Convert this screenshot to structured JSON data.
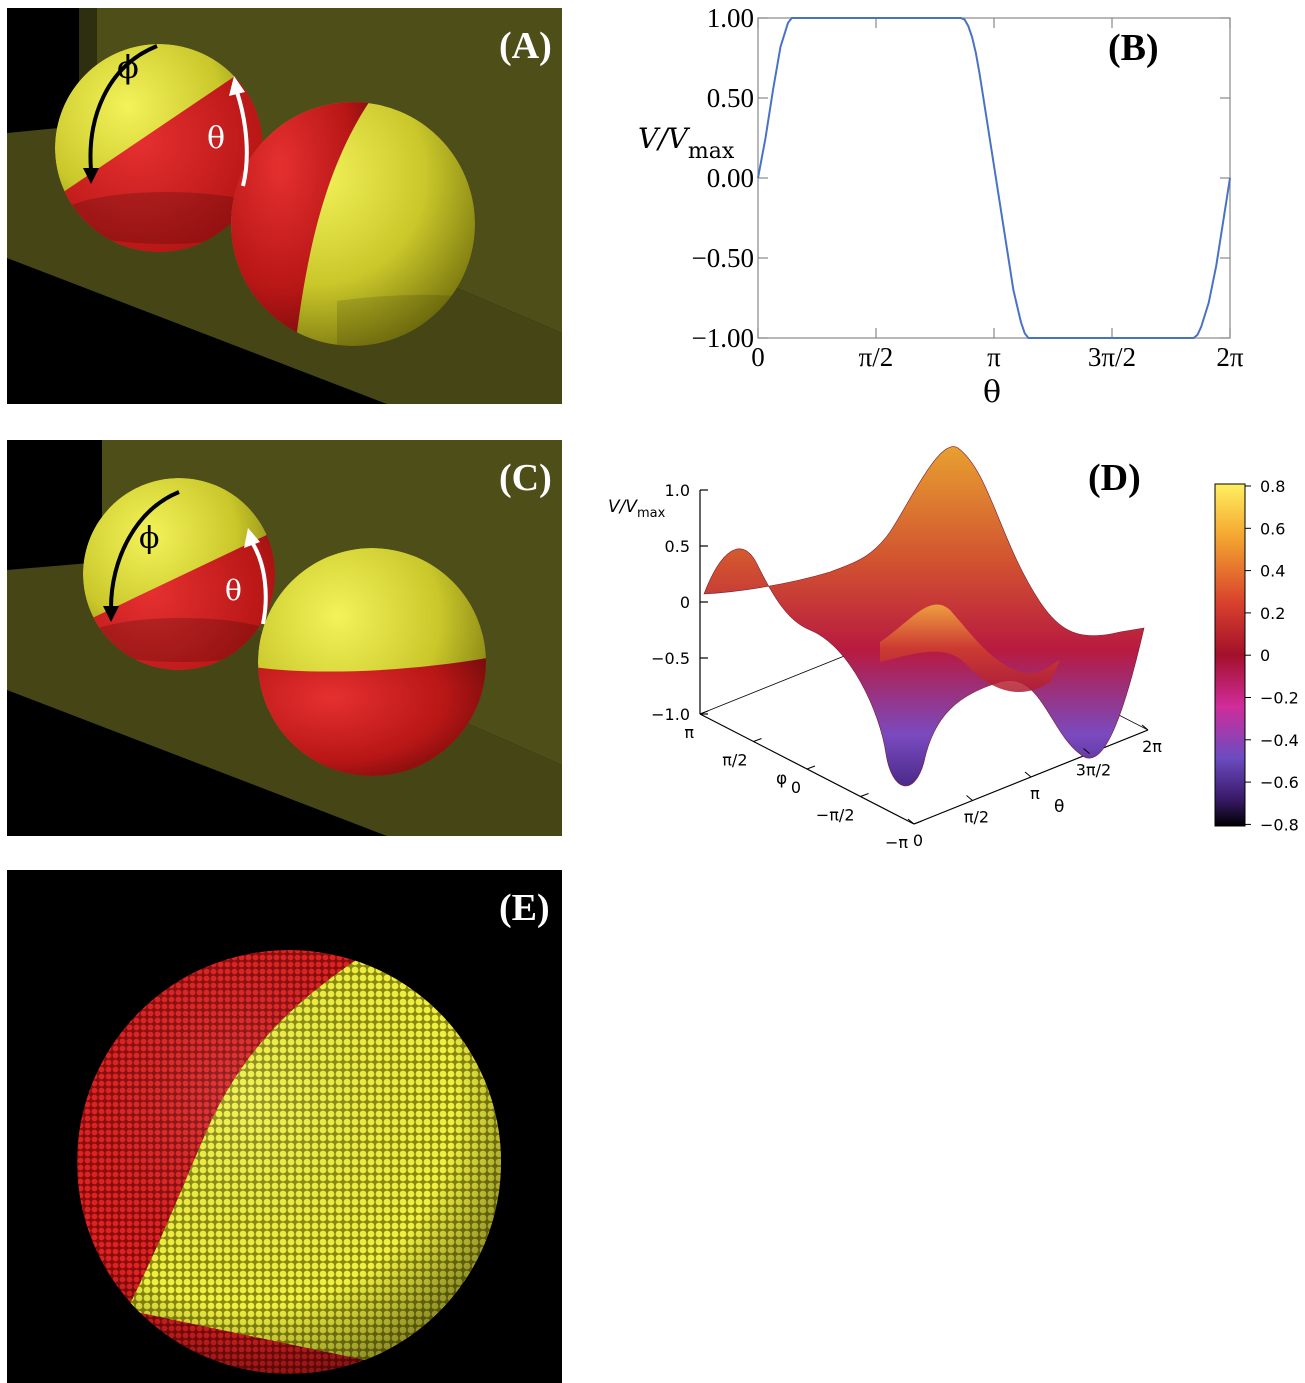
{
  "panels": {
    "A": {
      "label": "(A)",
      "phi": "ϕ",
      "theta": "θ"
    },
    "B": {
      "label": "(B)",
      "ylabel_main": "V/V",
      "ylabel_sub": "max",
      "xlabel": "θ",
      "xticks": [
        "0",
        "π/2",
        "π",
        "3π/2",
        "2π"
      ],
      "yticks": [
        "1.00",
        "0.50",
        "0.00",
        "−0.50",
        "−1.00"
      ]
    },
    "C": {
      "label": "(C)",
      "phi": "ϕ",
      "theta": "θ"
    },
    "D": {
      "label": "(D)",
      "zlabel_main": "V/V",
      "zlabel_sub": "max",
      "zticks": [
        "1.0",
        "0.5",
        "0",
        "−0.5",
        "−1.0"
      ],
      "phi_label": "φ",
      "phi_ticks": [
        "π",
        "π/2",
        "0",
        "−π/2",
        "−π"
      ],
      "theta_label": "θ",
      "theta_ticks": [
        "0",
        "π/2",
        "π",
        "3π/2",
        "2π"
      ],
      "colorbar_ticks": [
        "0.8",
        "0.6",
        "0.4",
        "0.2",
        "0",
        "−0.2",
        "−0.4",
        "−0.6",
        "−0.8"
      ]
    },
    "E": {
      "label": "(E)"
    }
  },
  "chart_data": {
    "type": "line",
    "title": "",
    "xlabel": "θ",
    "ylabel": "V/Vmax",
    "xlim": [
      0,
      6.2832
    ],
    "ylim": [
      -1,
      1
    ],
    "x_tick_labels": [
      "0",
      "π/2",
      "π",
      "3π/2",
      "2π"
    ],
    "y_tick_labels": [
      "1.00",
      "0.50",
      "0.00",
      "−0.50",
      "−1.00"
    ],
    "grid": false,
    "series": [
      {
        "color": "#4a72c4",
        "x": [
          0,
          0.1,
          0.2,
          0.3,
          0.4,
          0.45,
          0.5,
          0.6,
          1.0,
          1.5,
          2.0,
          2.5,
          2.7,
          2.75,
          2.8,
          2.85,
          2.9,
          2.95,
          3.0,
          3.1,
          3.2,
          3.3,
          3.4,
          3.5,
          3.55,
          3.6,
          3.7,
          4.0,
          4.5,
          5.0,
          5.5,
          5.8,
          5.85,
          5.9,
          6.0,
          6.1,
          6.2832
        ],
        "y": [
          0,
          0.25,
          0.55,
          0.82,
          0.97,
          1.0,
          1.0,
          1.0,
          1.0,
          1.0,
          1.0,
          1.0,
          1.0,
          0.99,
          0.95,
          0.88,
          0.78,
          0.65,
          0.5,
          0.2,
          -0.1,
          -0.4,
          -0.7,
          -0.9,
          -0.97,
          -1.0,
          -1.0,
          -1.0,
          -1.0,
          -1.0,
          -1.0,
          -1.0,
          -0.98,
          -0.93,
          -0.78,
          -0.55,
          0
        ]
      }
    ]
  }
}
